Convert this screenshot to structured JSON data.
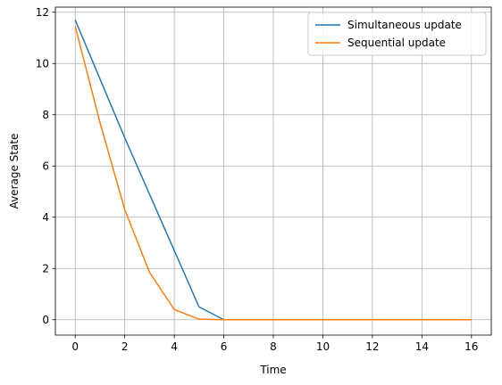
{
  "chart_data": {
    "type": "line",
    "title": "",
    "xlabel": "Time",
    "ylabel": "Average State",
    "xlim": [
      -0.8,
      16.8
    ],
    "ylim": [
      -0.6,
      12.2
    ],
    "xticks": [
      0,
      2,
      4,
      6,
      8,
      10,
      12,
      14,
      16
    ],
    "yticks": [
      0,
      2,
      4,
      6,
      8,
      10,
      12
    ],
    "grid": true,
    "legend_position": "top-right",
    "series": [
      {
        "name": "Simultaneous update",
        "color": "#1f77b4",
        "x": [
          0,
          1,
          2,
          3,
          4,
          5,
          6,
          7,
          8,
          9,
          10,
          11,
          12,
          13,
          14,
          15,
          16
        ],
        "y": [
          11.7,
          9.4,
          7.1,
          4.9,
          2.7,
          0.5,
          0.0,
          0.0,
          0.0,
          0.0,
          0.0,
          0.0,
          0.0,
          0.0,
          0.0,
          0.0,
          0.0
        ]
      },
      {
        "name": "Sequential update",
        "color": "#ff7f0e",
        "x": [
          0,
          1,
          2,
          3,
          4,
          5,
          6,
          7,
          8,
          9,
          10,
          11,
          12,
          13,
          14,
          15,
          16
        ],
        "y": [
          11.45,
          7.7,
          4.3,
          1.85,
          0.4,
          0.02,
          0.0,
          0.0,
          0.0,
          0.0,
          0.0,
          0.0,
          0.0,
          0.0,
          0.0,
          0.0,
          0.0
        ]
      }
    ]
  }
}
